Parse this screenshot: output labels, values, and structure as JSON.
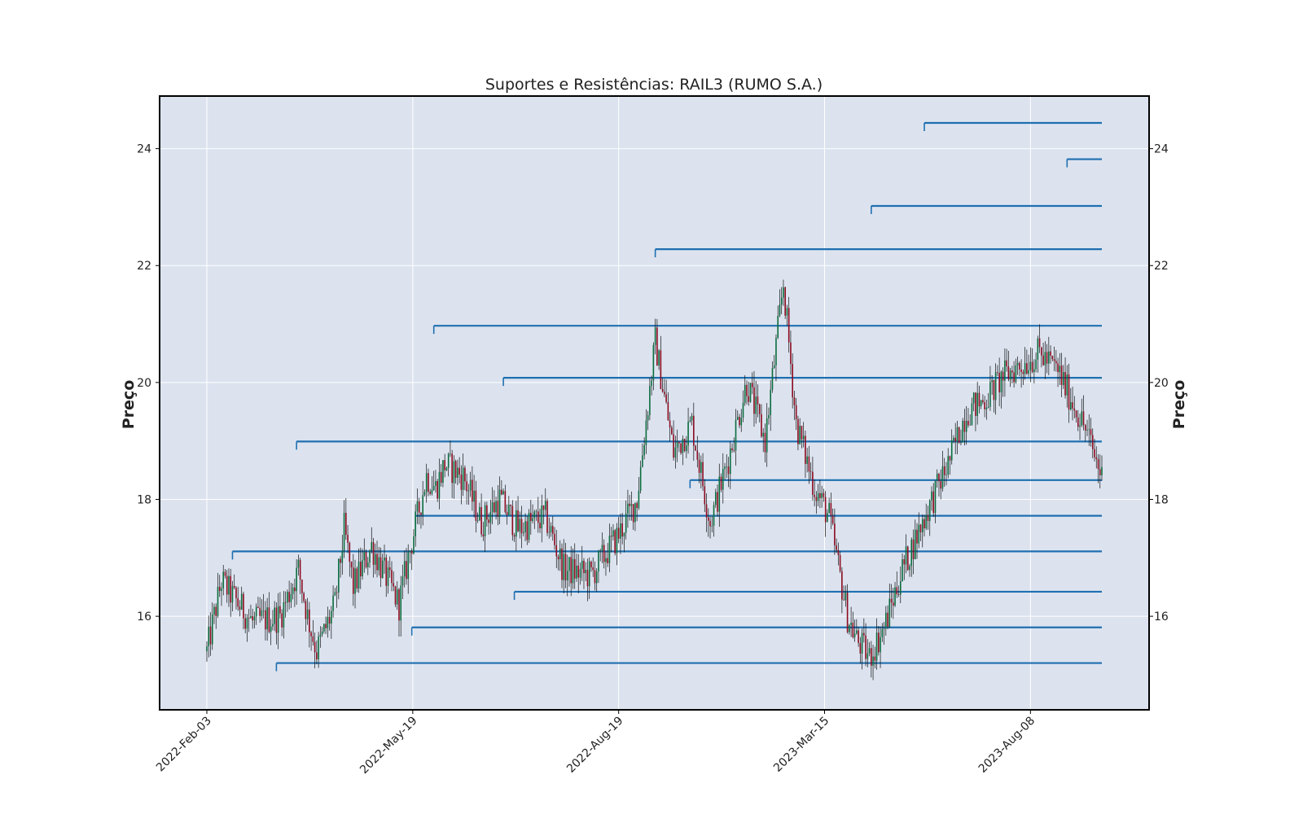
{
  "chart_data": {
    "type": "candlestick",
    "title": "Suportes e Resistências: RAIL3 (RUMO S.A.)",
    "ylabel_left": "Preço",
    "ylabel_right": "Preço",
    "xlabel": "",
    "ylim": [
      14.4,
      24.9
    ],
    "y_ticks": [
      16,
      18,
      20,
      22,
      24
    ],
    "x_ticks": [
      "2022-Feb-03",
      "2022-May-19",
      "2022-Aug-19",
      "2023-Mar-15",
      "2023-Aug-08"
    ],
    "grid": true,
    "colors": {
      "background": "#dce3ef",
      "grid": "#ffffff",
      "up": "#0a6b3d",
      "down": "#8b0a1e",
      "wick": "#111111",
      "level": "#1f6fb0",
      "frame": "#000000"
    },
    "n_candles": 490,
    "close_anchors": [
      [
        0,
        15.4
      ],
      [
        8,
        16.6
      ],
      [
        15,
        16.3
      ],
      [
        25,
        15.9
      ],
      [
        40,
        16.0
      ],
      [
        50,
        16.8
      ],
      [
        55,
        16.0
      ],
      [
        60,
        15.4
      ],
      [
        70,
        16.2
      ],
      [
        75,
        17.5
      ],
      [
        80,
        16.5
      ],
      [
        90,
        17.2
      ],
      [
        105,
        16.2
      ],
      [
        110,
        17.0
      ],
      [
        120,
        18.4
      ],
      [
        125,
        18.2
      ],
      [
        130,
        18.6
      ],
      [
        140,
        18.4
      ],
      [
        150,
        17.6
      ],
      [
        160,
        18.0
      ],
      [
        170,
        17.5
      ],
      [
        185,
        17.7
      ],
      [
        195,
        16.8
      ],
      [
        210,
        16.7
      ],
      [
        225,
        17.4
      ],
      [
        235,
        18.0
      ],
      [
        245,
        20.7
      ],
      [
        255,
        18.8
      ],
      [
        265,
        19.3
      ],
      [
        275,
        17.6
      ],
      [
        285,
        18.7
      ],
      [
        295,
        20.0
      ],
      [
        305,
        19.0
      ],
      [
        315,
        21.7
      ],
      [
        322,
        19.3
      ],
      [
        332,
        18.2
      ],
      [
        340,
        17.7
      ],
      [
        350,
        16.0
      ],
      [
        355,
        15.6
      ],
      [
        362,
        15.3
      ],
      [
        370,
        15.8
      ],
      [
        380,
        16.8
      ],
      [
        395,
        17.9
      ],
      [
        405,
        18.6
      ],
      [
        415,
        19.5
      ],
      [
        425,
        19.7
      ],
      [
        435,
        20.1
      ],
      [
        445,
        20.3
      ],
      [
        455,
        20.5
      ],
      [
        465,
        20.2
      ],
      [
        480,
        19.2
      ],
      [
        490,
        18.3
      ]
    ],
    "levels": [
      {
        "value": 24.44,
        "from": "2023-Jun",
        "to": "end"
      },
      {
        "value": 23.82,
        "from": "2023-Nov",
        "to": "end"
      },
      {
        "value": 23.02,
        "from": "2023-May",
        "to": "end"
      },
      {
        "value": 22.28,
        "from": "2022-Oct",
        "to": "end"
      },
      {
        "value": 20.97,
        "from": "2022-Jun",
        "to": "end"
      },
      {
        "value": 20.08,
        "from": "2022-Jul",
        "to": "end"
      },
      {
        "value": 18.99,
        "from": "2022-Mar",
        "to": "end"
      },
      {
        "value": 18.33,
        "from": "2022-Dec",
        "to": "end"
      },
      {
        "value": 17.72,
        "from": "2022-May",
        "to": "end"
      },
      {
        "value": 17.11,
        "from": "2022-Feb",
        "to": "end"
      },
      {
        "value": 16.42,
        "from": "2022-Jul",
        "to": "end"
      },
      {
        "value": 15.81,
        "from": "2022-May",
        "to": "end"
      },
      {
        "value": 15.2,
        "from": "2022-Mar",
        "to": "end"
      }
    ]
  }
}
